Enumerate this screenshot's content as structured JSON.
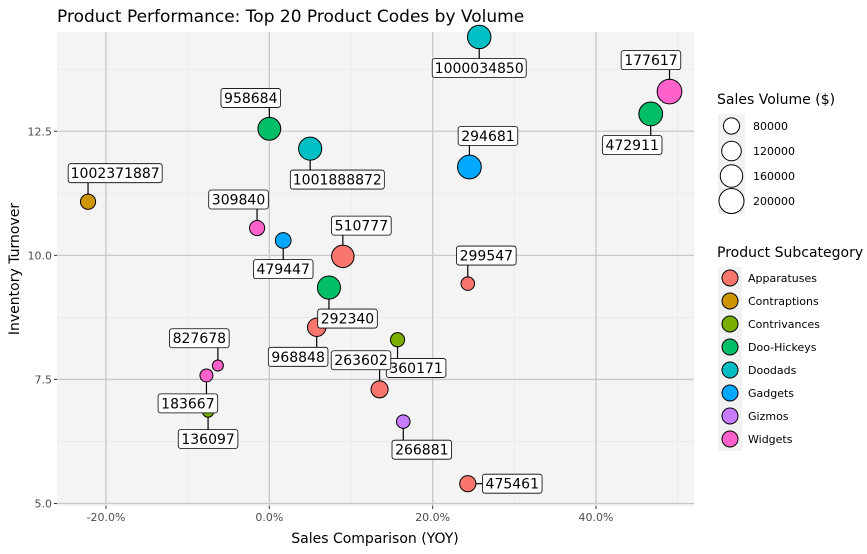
{
  "chart_data": {
    "type": "scatter",
    "title": "Product Performance: Top 20 Product Codes by Volume",
    "xlabel": "Sales Comparison (YOY)",
    "ylabel": "Inventory Turnover",
    "xlim": [
      -0.26,
      0.52
    ],
    "ylim": [
      4.95,
      14.5
    ],
    "x_ticks": [
      -0.2,
      0.0,
      0.2,
      0.4
    ],
    "x_tick_labels": [
      "-20.0%",
      "0.0%",
      "20.0%",
      "40.0%"
    ],
    "y_ticks": [
      5.0,
      7.5,
      10.0,
      12.5
    ],
    "y_tick_labels": [
      "5.0",
      "7.5",
      "10.0",
      "12.5"
    ],
    "grid": true,
    "size_legend": {
      "title": "Sales Volume ($)",
      "values": [
        80000,
        120000,
        160000,
        200000
      ],
      "labels": [
        "80000",
        "120000",
        "160000",
        "200000"
      ]
    },
    "color_legend": {
      "title": "Product Subcategory",
      "items": [
        {
          "name": "Apparatuses",
          "color": "#F8766D"
        },
        {
          "name": "Contraptions",
          "color": "#CD9600"
        },
        {
          "name": "Contrivances",
          "color": "#7CAE00"
        },
        {
          "name": "Doo-Hickeys",
          "color": "#00BE67"
        },
        {
          "name": "Doodads",
          "color": "#00BFC4"
        },
        {
          "name": "Gadgets",
          "color": "#00A9FF"
        },
        {
          "name": "Gizmos",
          "color": "#C77CFF"
        },
        {
          "name": "Widgets",
          "color": "#FF61CC"
        }
      ]
    },
    "points": [
      {
        "label": "1000034850",
        "x": 0.257,
        "y": 14.4,
        "size": 175000,
        "category": "Doodads",
        "label_dx": 0,
        "label_dy": 1
      },
      {
        "label": "177617",
        "x": 0.49,
        "y": 13.3,
        "size": 195000,
        "category": "Widgets",
        "label_dx": -0.5,
        "label_dy": -1
      },
      {
        "label": "472911",
        "x": 0.467,
        "y": 12.85,
        "size": 180000,
        "category": "Doo-Hickeys",
        "label_dx": -0.5,
        "label_dy": 1
      },
      {
        "label": "958684",
        "x": 0.0,
        "y": 12.55,
        "size": 165000,
        "category": "Doo-Hickeys",
        "label_dx": -0.5,
        "label_dy": -1
      },
      {
        "label": "1001888872",
        "x": 0.05,
        "y": 12.15,
        "size": 170000,
        "category": "Doodads",
        "label_dx": 0.5,
        "label_dy": 1
      },
      {
        "label": "294681",
        "x": 0.245,
        "y": 11.78,
        "size": 180000,
        "category": "Gadgets",
        "label_dx": 0.5,
        "label_dy": -1
      },
      {
        "label": "1002371887",
        "x": -0.222,
        "y": 11.08,
        "size": 70000,
        "category": "Contraptions",
        "label_dx": 0.5,
        "label_dy": -1
      },
      {
        "label": "309840",
        "x": -0.015,
        "y": 10.55,
        "size": 70000,
        "category": "Widgets",
        "label_dx": -0.5,
        "label_dy": -1
      },
      {
        "label": "479447",
        "x": 0.017,
        "y": 10.3,
        "size": 75000,
        "category": "Gadgets",
        "label_dx": 0,
        "label_dy": 1
      },
      {
        "label": "510777",
        "x": 0.09,
        "y": 9.98,
        "size": 160000,
        "category": "Apparatuses",
        "label_dx": 0.5,
        "label_dy": -1
      },
      {
        "label": "299547",
        "x": 0.243,
        "y": 9.43,
        "size": 55000,
        "category": "Apparatuses",
        "label_dx": 0.5,
        "label_dy": -1
      },
      {
        "label": "292340",
        "x": 0.073,
        "y": 9.35,
        "size": 170000,
        "category": "Doo-Hickeys",
        "label_dx": 0.5,
        "label_dy": 1
      },
      {
        "label": "968848",
        "x": 0.058,
        "y": 8.55,
        "size": 105000,
        "category": "Apparatuses",
        "label_dx": -0.5,
        "label_dy": 1
      },
      {
        "label": "360171",
        "x": 0.157,
        "y": 8.3,
        "size": 60000,
        "category": "Contrivances",
        "label_dx": 0.5,
        "label_dy": 1
      },
      {
        "label": "827678",
        "x": -0.063,
        "y": 7.78,
        "size": 35000,
        "category": "Widgets",
        "label_dx": -0.5,
        "label_dy": -1
      },
      {
        "label": "183667",
        "x": -0.077,
        "y": 7.58,
        "size": 50000,
        "category": "Widgets",
        "label_dx": -0.5,
        "label_dy": 1
      },
      {
        "label": "263602",
        "x": 0.135,
        "y": 7.3,
        "size": 90000,
        "category": "Apparatuses",
        "label_dx": -0.5,
        "label_dy": -1
      },
      {
        "label": "136097",
        "x": -0.075,
        "y": 6.85,
        "size": 35000,
        "category": "Contrivances",
        "label_dx": 0,
        "label_dy": 1
      },
      {
        "label": "266881",
        "x": 0.164,
        "y": 6.65,
        "size": 55000,
        "category": "Gizmos",
        "label_dx": 0.5,
        "label_dy": 1
      },
      {
        "label": "475461",
        "x": 0.243,
        "y": 5.4,
        "size": 80000,
        "category": "Apparatuses",
        "label_dx": 1,
        "label_dy": 0
      }
    ]
  }
}
